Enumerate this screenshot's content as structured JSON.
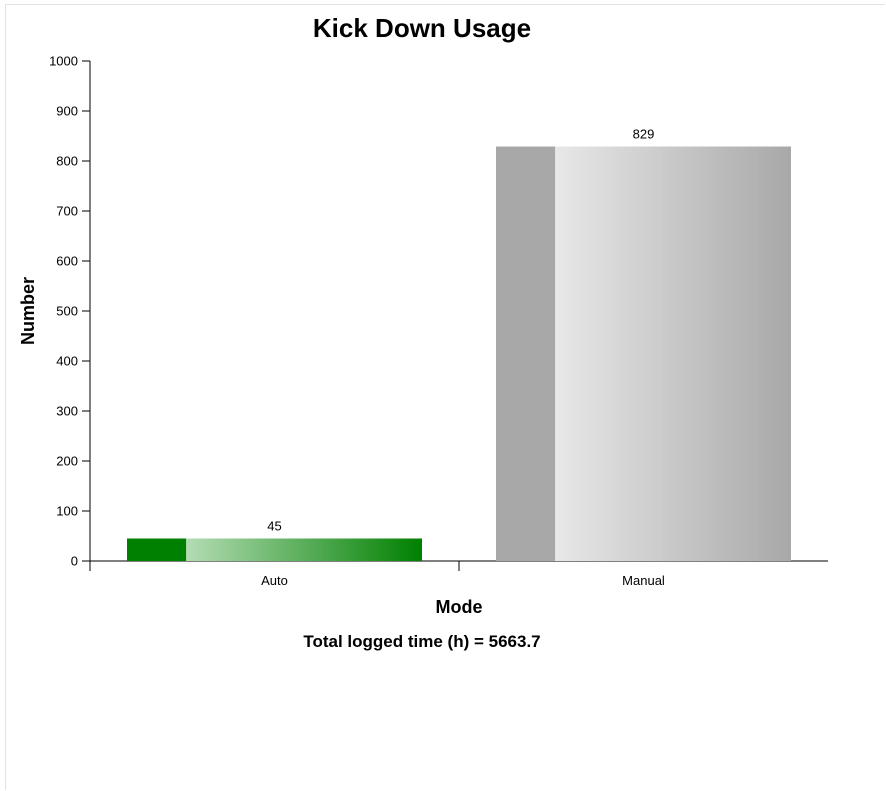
{
  "chart_data": {
    "type": "bar",
    "title": "Kick Down Usage",
    "xlabel": "Mode",
    "ylabel": "Number",
    "categories": [
      "Auto",
      "Manual"
    ],
    "values": [
      45,
      829
    ],
    "data_labels": [
      "45",
      "829"
    ],
    "ylim": [
      0,
      1000
    ],
    "yticks": [
      0,
      100,
      200,
      300,
      400,
      500,
      600,
      700,
      800,
      900,
      1000
    ],
    "grid": false,
    "legend": "none",
    "colors": {
      "Auto": {
        "dark": "#008000",
        "light": "#b4dcb4"
      },
      "Manual": {
        "dark": "#a8a8a8",
        "light": "#e8e8e8"
      }
    }
  },
  "footer": {
    "text": "Total logged time (h) = 5663.7"
  }
}
